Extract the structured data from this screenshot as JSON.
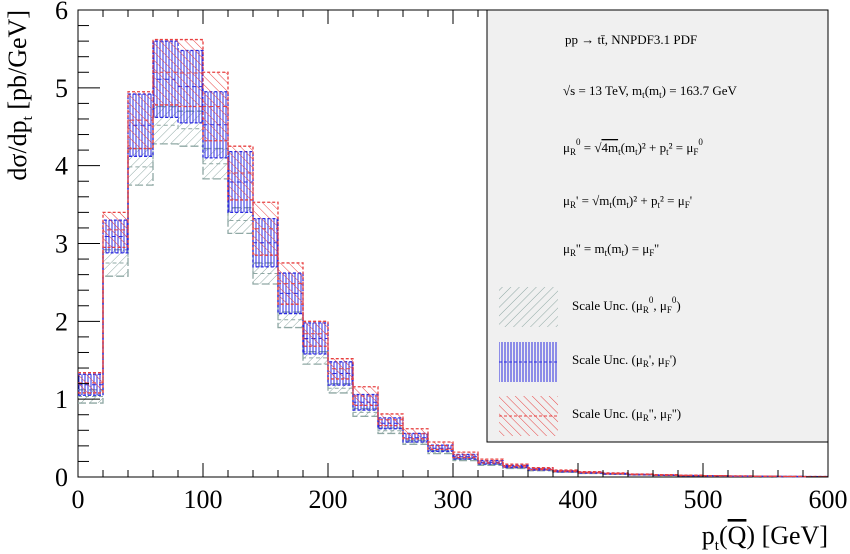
{
  "chart_data": {
    "type": "histogram",
    "xlabel": "p_t(Q̄) [GeV]",
    "ylabel": "dσ/dp_t [pb/GeV]",
    "xlim": [
      0,
      600
    ],
    "ylim": [
      0,
      6
    ],
    "x_ticks": [
      "0",
      "100",
      "200",
      "300",
      "400",
      "500",
      "600"
    ],
    "y_ticks": [
      "0",
      "1",
      "2",
      "3",
      "4",
      "5",
      "6"
    ],
    "grid": false,
    "legend_position": "top-right",
    "bin_edges": [
      0,
      20,
      40,
      60,
      80,
      100,
      120,
      140,
      160,
      180,
      200,
      220,
      240,
      260,
      280,
      300,
      320,
      340,
      360,
      380,
      400,
      420,
      440,
      460,
      480,
      500,
      520,
      540,
      560,
      580,
      600
    ],
    "series": [
      {
        "name": "Scale Unc. (μR0, μF0)",
        "color": "#8fa8a4",
        "hatch": "diagonal",
        "low": [
          0.95,
          2.58,
          3.75,
          4.28,
          4.25,
          3.83,
          3.13,
          2.48,
          1.92,
          1.45,
          1.08,
          0.78,
          0.56,
          0.42,
          0.3,
          0.21,
          0.15,
          0.11,
          0.08,
          0.06,
          0.045,
          0.035,
          0.026,
          0.02,
          0.016,
          0.012,
          0.009,
          0.007,
          0.005,
          0.004
        ],
        "high": [
          1.12,
          2.92,
          4.22,
          4.76,
          4.7,
          4.22,
          3.46,
          2.75,
          2.12,
          1.61,
          1.2,
          0.88,
          0.63,
          0.47,
          0.34,
          0.24,
          0.17,
          0.125,
          0.09,
          0.068,
          0.052,
          0.04,
          0.03,
          0.023,
          0.018,
          0.014,
          0.011,
          0.008,
          0.006,
          0.005
        ]
      },
      {
        "name": "Scale Unc. (μR', μF')",
        "color": "#2a2ae0",
        "hatch": "vertical",
        "low": [
          1.05,
          2.88,
          4.12,
          4.62,
          4.55,
          4.1,
          3.4,
          2.7,
          2.1,
          1.58,
          1.18,
          0.86,
          0.62,
          0.45,
          0.33,
          0.23,
          0.165,
          0.12,
          0.088,
          0.066,
          0.05,
          0.038,
          0.028,
          0.021,
          0.017,
          0.013,
          0.01,
          0.008,
          0.006,
          0.005
        ],
        "high": [
          1.32,
          3.3,
          4.92,
          5.6,
          5.48,
          4.95,
          4.18,
          3.32,
          2.62,
          1.98,
          1.48,
          1.06,
          0.76,
          0.56,
          0.41,
          0.29,
          0.21,
          0.15,
          0.11,
          0.082,
          0.062,
          0.047,
          0.035,
          0.027,
          0.021,
          0.016,
          0.012,
          0.009,
          0.007,
          0.006
        ]
      },
      {
        "name": "Scale Unc. (μR'', μF'')",
        "color": "#e84040",
        "hatch": "diagonal",
        "low": [
          1.08,
          2.95,
          4.22,
          4.78,
          4.76,
          4.32,
          3.56,
          2.85,
          2.22,
          1.68,
          1.26,
          0.92,
          0.66,
          0.49,
          0.355,
          0.25,
          0.18,
          0.13,
          0.095,
          0.071,
          0.054,
          0.041,
          0.031,
          0.023,
          0.018,
          0.014,
          0.011,
          0.008,
          0.006,
          0.005
        ],
        "high": [
          1.34,
          3.4,
          4.95,
          5.62,
          5.62,
          5.2,
          4.25,
          3.53,
          2.75,
          2.0,
          1.52,
          1.16,
          0.81,
          0.62,
          0.45,
          0.32,
          0.23,
          0.165,
          0.12,
          0.09,
          0.068,
          0.052,
          0.039,
          0.03,
          0.023,
          0.018,
          0.014,
          0.011,
          0.008,
          0.006
        ]
      }
    ]
  },
  "legend": {
    "line1": "pp  → tt̄, NNPDF3.1 PDF",
    "line2": "√s = 13 TeV, m_t(m_t) = 163.7 GeV",
    "line3": "μR0 = √(4m_t(m_t)² + p_t²) = μF0",
    "line4": "μR' = √(m_t(m_t)² + p_t²) = μF'",
    "line5": "μR'' = m_t(m_t) = μF''",
    "entry1": "Scale Unc. (μR0, μF0)",
    "entry2": "Scale Unc. (μR', μF')",
    "entry3": "Scale Unc. (μR'', μF'')"
  }
}
